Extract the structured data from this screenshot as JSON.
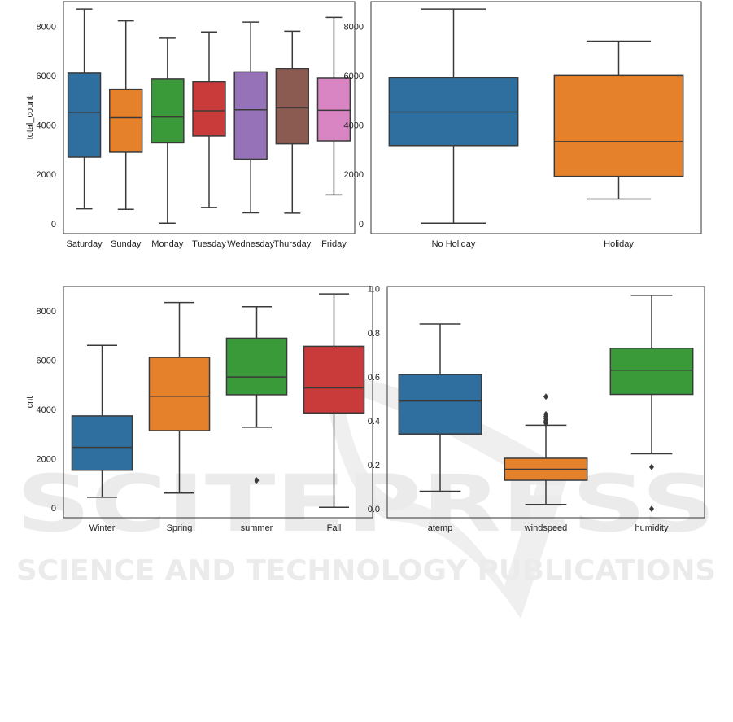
{
  "watermark": {
    "brand": "SCITEPRESS",
    "tagline": "SCIENCE AND TECHNOLOGY PUBLICATIONS",
    "color": "#d9d9d9"
  },
  "chart_data": [
    {
      "type": "box",
      "xlabel": "",
      "ylabel": "total_count",
      "ylim": [
        -400,
        9000
      ],
      "yticks": [
        0,
        2000,
        4000,
        6000,
        8000
      ],
      "ytick_labels": [
        "0",
        "2000",
        "4000",
        "6000",
        "8000"
      ],
      "categories": [
        "Saturday",
        "Sunday",
        "Monday",
        "Tuesday",
        "Wednesday",
        "Thursday",
        "Friday"
      ],
      "boxes": [
        {
          "min": 600,
          "q1": 2700,
          "median": 4520,
          "q3": 6100,
          "max": 8700,
          "outliers": [],
          "color": "#2f6f9f"
        },
        {
          "min": 580,
          "q1": 2900,
          "median": 4300,
          "q3": 5450,
          "max": 8220,
          "outliers": [],
          "color": "#e5812b"
        },
        {
          "min": 20,
          "q1": 3280,
          "median": 4330,
          "q3": 5870,
          "max": 7520,
          "outliers": [],
          "color": "#3a9a3a"
        },
        {
          "min": 660,
          "q1": 3560,
          "median": 4580,
          "q3": 5750,
          "max": 7770,
          "outliers": [],
          "color": "#c93a3a"
        },
        {
          "min": 440,
          "q1": 2620,
          "median": 4620,
          "q3": 6150,
          "max": 8170,
          "outliers": [],
          "color": "#9673b9"
        },
        {
          "min": 430,
          "q1": 3240,
          "median": 4700,
          "q3": 6280,
          "max": 7800,
          "outliers": [],
          "color": "#8b5a50"
        },
        {
          "min": 1170,
          "q1": 3360,
          "median": 4600,
          "q3": 5900,
          "max": 8360,
          "outliers": [],
          "color": "#d985c3"
        }
      ]
    },
    {
      "type": "box",
      "xlabel": "",
      "ylabel": "",
      "ylim": [
        -400,
        9000
      ],
      "yticks": [
        0,
        2000,
        4000,
        6000,
        8000
      ],
      "ytick_labels": [
        "0",
        "2000",
        "4000",
        "6000",
        "8000"
      ],
      "categories": [
        "No Holiday",
        "Holiday"
      ],
      "boxes": [
        {
          "min": 20,
          "q1": 3170,
          "median": 4530,
          "q3": 5920,
          "max": 8700,
          "outliers": [],
          "color": "#2f6f9f"
        },
        {
          "min": 1000,
          "q1": 1920,
          "median": 3330,
          "q3": 6020,
          "max": 7400,
          "outliers": [],
          "color": "#e5812b"
        }
      ]
    },
    {
      "type": "box",
      "xlabel": "",
      "ylabel": "cnt",
      "ylim": [
        -400,
        9000
      ],
      "yticks": [
        0,
        2000,
        4000,
        6000,
        8000
      ],
      "ytick_labels": [
        "0",
        "2000",
        "4000",
        "6000",
        "8000"
      ],
      "categories": [
        "Winter",
        "Spring",
        "summer",
        "Fall"
      ],
      "boxes": [
        {
          "min": 430,
          "q1": 1530,
          "median": 2460,
          "q3": 3740,
          "max": 6610,
          "outliers": [],
          "color": "#2f6f9f"
        },
        {
          "min": 600,
          "q1": 3140,
          "median": 4540,
          "q3": 6120,
          "max": 8350,
          "outliers": [],
          "color": "#e5812b"
        },
        {
          "min": 3280,
          "q1": 4600,
          "median": 5320,
          "q3": 6900,
          "max": 8180,
          "outliers": [
            1120
          ],
          "color": "#3a9a3a"
        },
        {
          "min": 20,
          "q1": 3860,
          "median": 4880,
          "q3": 6570,
          "max": 8700,
          "outliers": [],
          "color": "#c93a3a"
        }
      ]
    },
    {
      "type": "box",
      "xlabel": "",
      "ylabel": "",
      "ylim": [
        -0.04,
        1.01
      ],
      "yticks": [
        0.0,
        0.2,
        0.4,
        0.6,
        0.8,
        1.0
      ],
      "ytick_labels": [
        "0.0",
        "0.2",
        "0.4",
        "0.6",
        "0.8",
        "1.0"
      ],
      "categories": [
        "atemp",
        "windspeed",
        "humidity"
      ],
      "boxes": [
        {
          "min": 0.08,
          "q1": 0.34,
          "median": 0.49,
          "q3": 0.61,
          "max": 0.84,
          "outliers": [],
          "color": "#2f6f9f"
        },
        {
          "min": 0.02,
          "q1": 0.13,
          "median": 0.18,
          "q3": 0.23,
          "max": 0.38,
          "outliers": [
            0.39,
            0.4,
            0.41,
            0.42,
            0.43,
            0.51
          ],
          "color": "#e5812b"
        },
        {
          "min": 0.25,
          "q1": 0.52,
          "median": 0.63,
          "q3": 0.73,
          "max": 0.97,
          "outliers": [
            0.19,
            0.0
          ],
          "color": "#3a9a3a"
        }
      ]
    }
  ]
}
